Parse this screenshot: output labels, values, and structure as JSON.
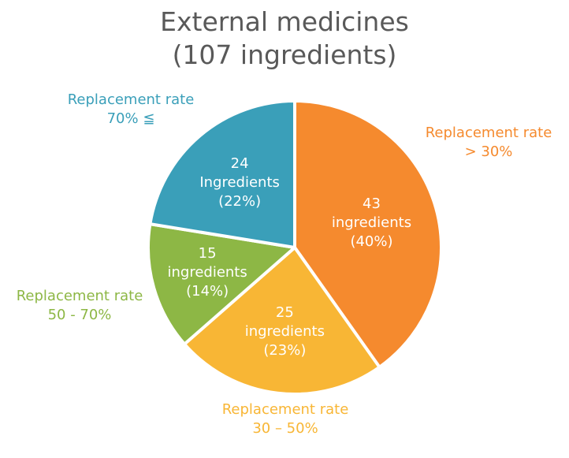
{
  "chart_data": {
    "type": "pie",
    "title_line1": "External medicines",
    "title_line2": "(107 ingredients)",
    "total": 107,
    "slices": [
      {
        "category": "Replacement rate > 30%",
        "outer_line1": "Replacement rate",
        "outer_line2": "> 30%",
        "value": 43,
        "count_label": "43",
        "unit_label": "ingredients",
        "percent_label": "(40%)",
        "color": "#F58A2E"
      },
      {
        "category": "Replacement rate 30 – 50%",
        "outer_line1": "Replacement rate",
        "outer_line2": "30 – 50%",
        "value": 25,
        "count_label": "25",
        "unit_label": "ingredients",
        "percent_label": "(23%)",
        "color": "#F8B635"
      },
      {
        "category": "Replacement rate 50 - 70%",
        "outer_line1": "Replacement rate",
        "outer_line2": "50 - 70%",
        "value": 15,
        "count_label": "15",
        "unit_label": "ingredients",
        "percent_label": "(14%)",
        "color": "#8DB745"
      },
      {
        "category": "Replacement rate 70% ≦",
        "outer_line1": "Replacement rate",
        "outer_line2": "70% ≦",
        "value": 24,
        "count_label": "24",
        "unit_label": "Ingredients",
        "percent_label": "(22%)",
        "color": "#3A9FB9"
      }
    ]
  }
}
